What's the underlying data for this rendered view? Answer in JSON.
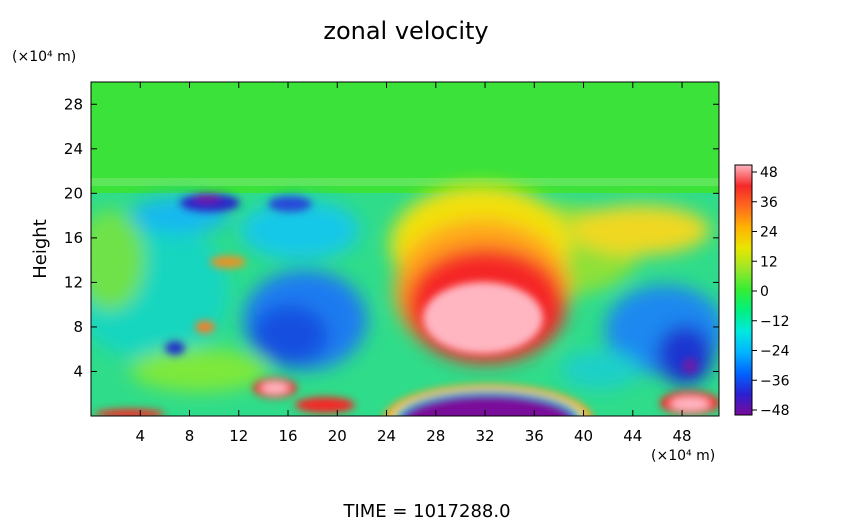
{
  "chart_data": {
    "type": "heatmap",
    "title": "zonal velocity",
    "xlabel": "",
    "ylabel": "Height",
    "x_unit_label": "(×10⁴ m)",
    "y_unit_label": "(×10⁴ m)",
    "xlim": [
      0,
      51
    ],
    "ylim": [
      0,
      30
    ],
    "x_ticks": [
      4,
      8,
      12,
      16,
      20,
      24,
      28,
      32,
      36,
      40,
      44,
      48
    ],
    "y_ticks": [
      4,
      8,
      12,
      16,
      20,
      24,
      28
    ],
    "colorbar": {
      "ticks": [
        48,
        36,
        24,
        12,
        0,
        -12,
        -24,
        -36,
        -48
      ],
      "vmin": -48,
      "vmax": 48,
      "colors": [
        "#7a0a9a",
        "#2a20d0",
        "#0064ff",
        "#00b4ff",
        "#00e8e0",
        "#00f080",
        "#33ee33",
        "#9be62a",
        "#e8e600",
        "#ffb300",
        "#ff6a1e",
        "#f52828",
        "#ffb6c1"
      ]
    },
    "features": [
      {
        "x": 30.5,
        "y": 8.0,
        "value": 48,
        "desc": "jet core"
      },
      {
        "x": 31.5,
        "y": 0.6,
        "value": -48,
        "desc": "low-level easterly"
      },
      {
        "x": 10.0,
        "y": 19.8,
        "value": -42
      },
      {
        "x": 15.5,
        "y": 1.8,
        "value": 42
      },
      {
        "x": 48.5,
        "y": 4.5,
        "value": -44
      }
    ],
    "time_label": "TIME  =  1017288.0"
  }
}
